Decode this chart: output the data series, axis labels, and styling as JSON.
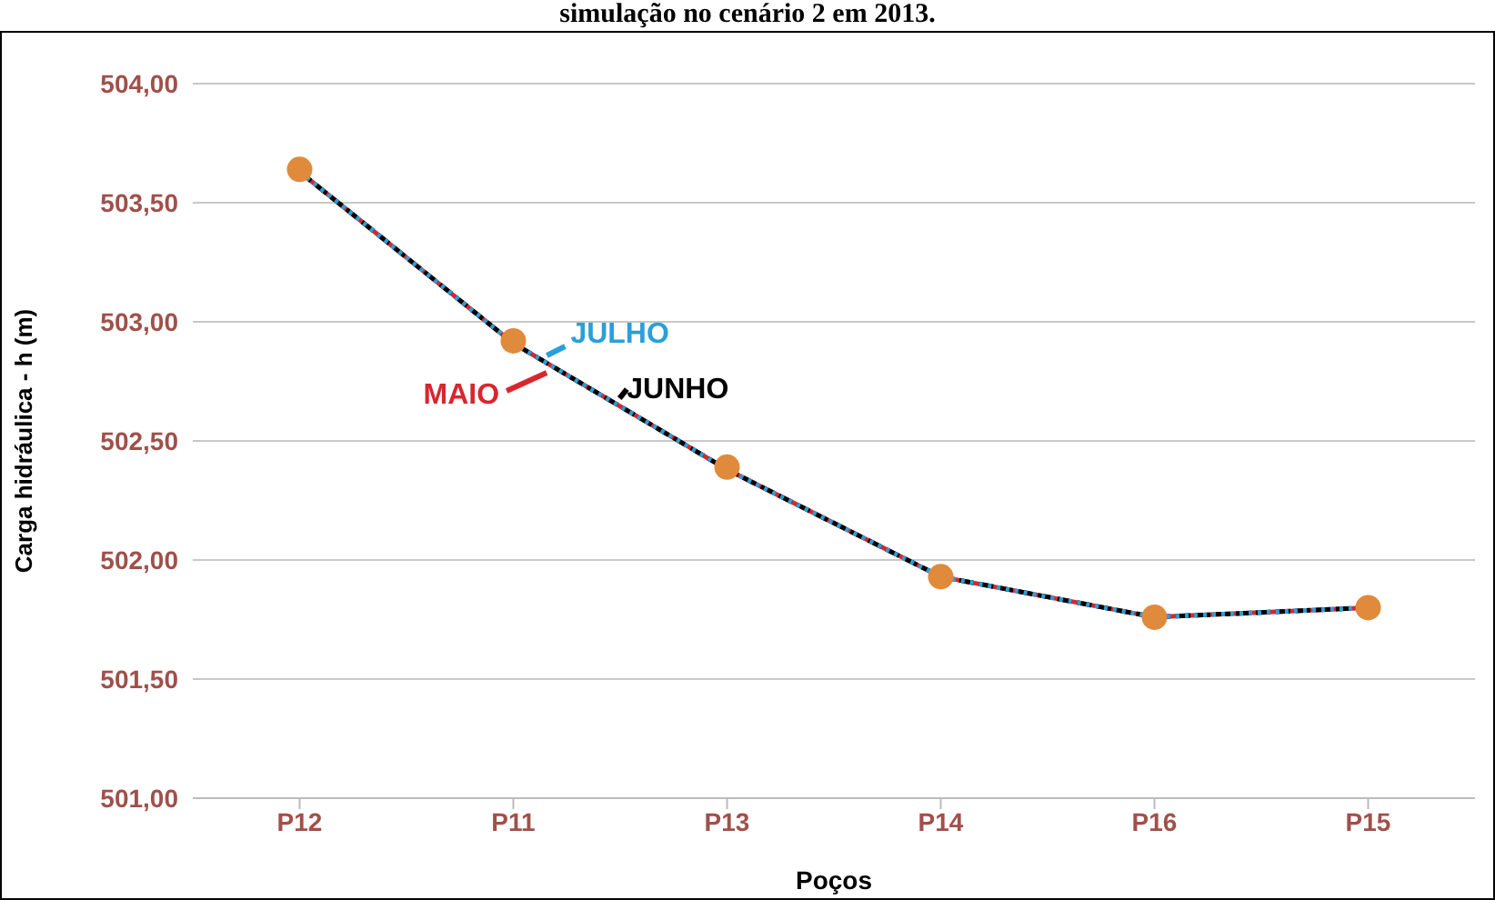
{
  "chart_data": {
    "type": "line",
    "title": "simulação no cenário 2 em 2013.",
    "xlabel": "Poços",
    "ylabel": "Carga hidráulica - h (m)",
    "categories": [
      "P12",
      "P11",
      "P13",
      "P14",
      "P16",
      "P15"
    ],
    "series": [
      {
        "name": "MAIO",
        "color": "#d9262e",
        "line_style": "solid",
        "marker": "none",
        "values": [
          503.63,
          502.91,
          502.38,
          501.93,
          501.76,
          501.8
        ]
      },
      {
        "name": "JUNHO",
        "color": "#000000",
        "line_style": "dashed",
        "marker": "none",
        "values": [
          503.63,
          502.91,
          502.38,
          501.93,
          501.76,
          501.8
        ]
      },
      {
        "name": "JULHO",
        "color": "#2a9fd8",
        "line_style": "dotted",
        "marker": "none",
        "values": [
          503.63,
          502.91,
          502.38,
          501.93,
          501.76,
          501.8
        ]
      },
      {
        "type": "scatter",
        "color": "#e08a3c",
        "marker": "circle",
        "values": [
          503.64,
          502.92,
          502.39,
          501.93,
          501.76,
          501.8
        ]
      }
    ],
    "ylim": [
      501,
      504
    ],
    "yticks": [
      {
        "value": 501,
        "label": "501,00"
      },
      {
        "value": 501.5,
        "label": "501,50"
      },
      {
        "value": 502,
        "label": "502,00"
      },
      {
        "value": 502.5,
        "label": "502,50"
      },
      {
        "value": 503,
        "label": "503,00"
      },
      {
        "value": 503.5,
        "label": "503,50"
      },
      {
        "value": 504,
        "label": "504,00"
      }
    ],
    "grid": "y",
    "legend": "top left"
  }
}
